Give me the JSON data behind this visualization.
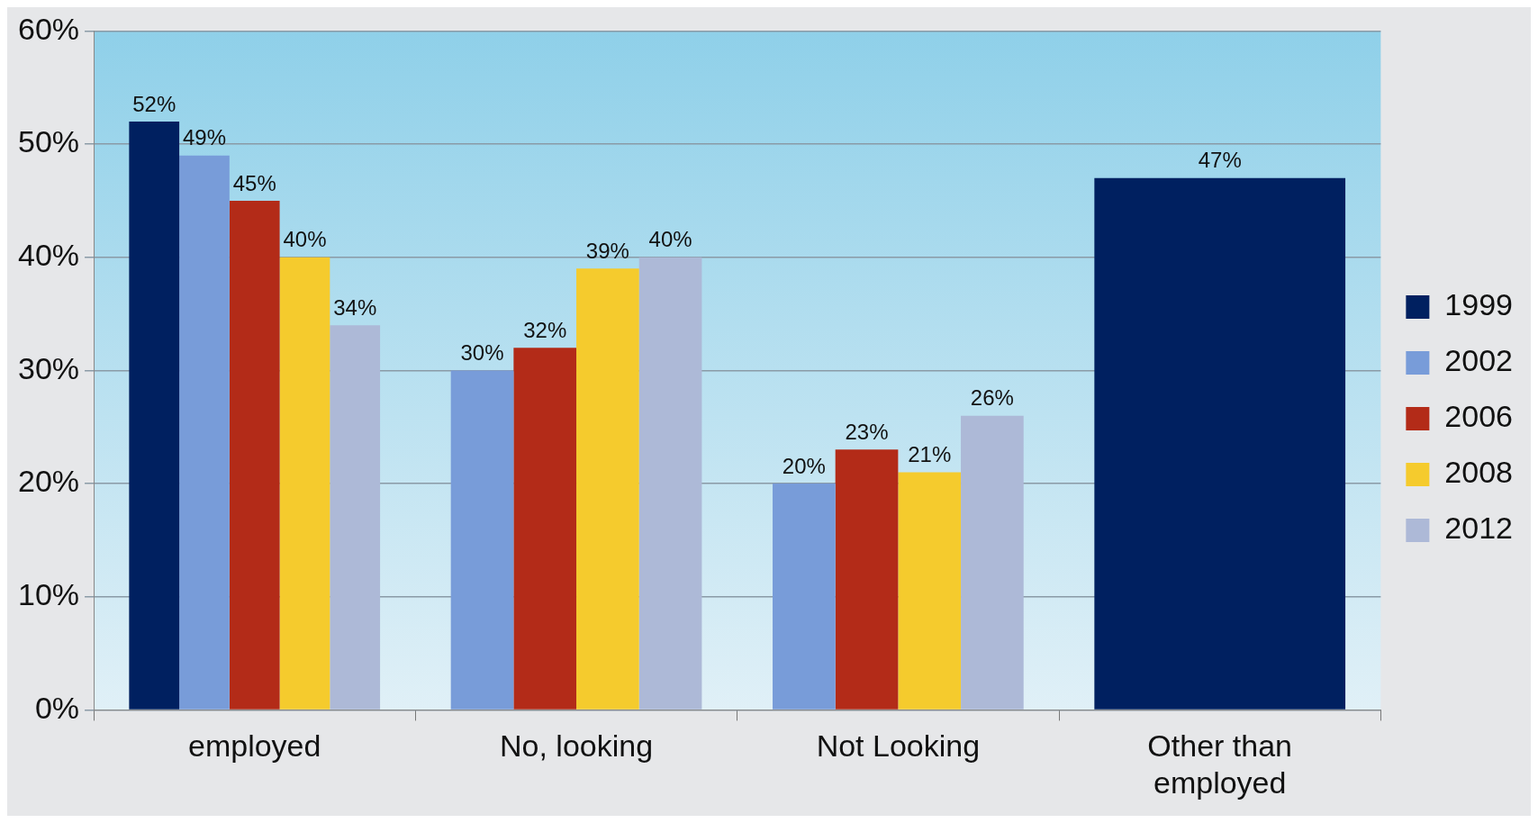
{
  "chart_data": {
    "type": "bar",
    "categories": [
      "employed",
      "No, looking",
      "Not Looking",
      "Other than employed"
    ],
    "series": [
      {
        "name": "1999",
        "color": "#002060",
        "values": [
          52,
          null,
          null,
          47
        ],
        "value_labels": [
          "52%",
          null,
          null,
          "47%"
        ]
      },
      {
        "name": "2002",
        "color": "#789cd9",
        "values": [
          49,
          30,
          20,
          null
        ],
        "value_labels": [
          "49%",
          "30%",
          "20%",
          null
        ]
      },
      {
        "name": "2006",
        "color": "#b32b18",
        "values": [
          45,
          32,
          23,
          null
        ],
        "value_labels": [
          "45%",
          "32%",
          "23%",
          null
        ]
      },
      {
        "name": "2008",
        "color": "#f5cb2d",
        "values": [
          40,
          39,
          21,
          null
        ],
        "value_labels": [
          "40%",
          "39%",
          "21%",
          null
        ]
      },
      {
        "name": "2012",
        "color": "#adb9d7",
        "values": [
          34,
          40,
          26,
          null
        ],
        "value_labels": [
          "34%",
          "40%",
          "26%",
          null
        ]
      }
    ],
    "ylim": [
      0,
      60
    ],
    "yticks": [
      {
        "value": 0,
        "label": "0%"
      },
      {
        "value": 10,
        "label": "10%"
      },
      {
        "value": 20,
        "label": "20%"
      },
      {
        "value": 30,
        "label": "30%"
      },
      {
        "value": 40,
        "label": "40%"
      },
      {
        "value": 50,
        "label": "50%"
      },
      {
        "value": 60,
        "label": "60%"
      }
    ],
    "grid": "y",
    "legend": "right"
  }
}
